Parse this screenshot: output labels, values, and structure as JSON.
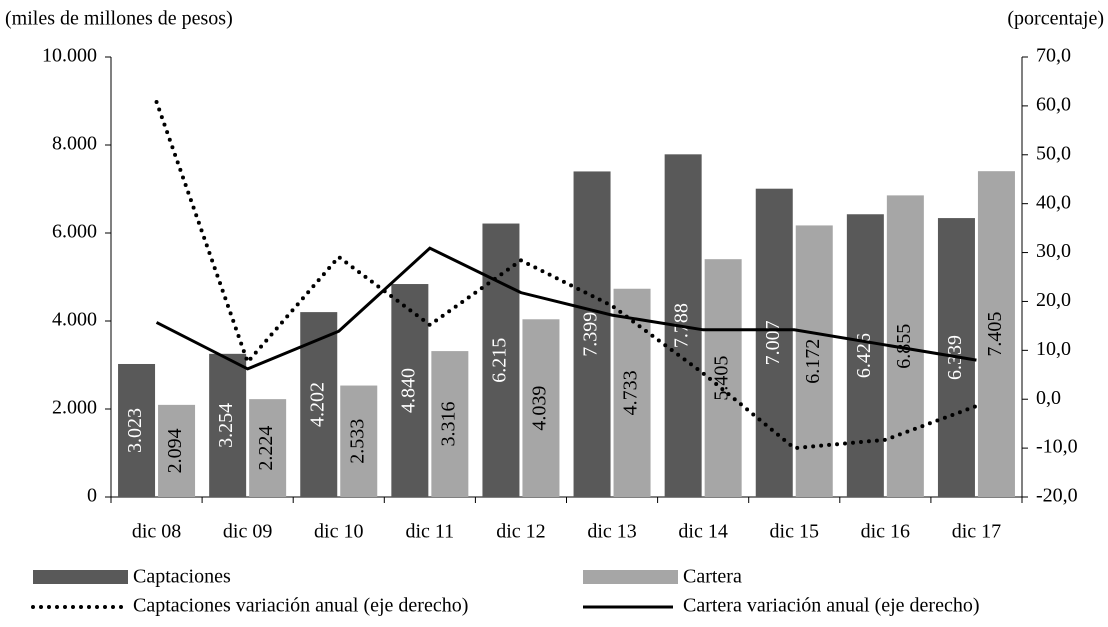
{
  "chart_data": {
    "type": "bar",
    "y_label": "(miles de millones de pesos)",
    "y2_label": "(porcentaje)",
    "categories": [
      "dic 08",
      "dic 09",
      "dic 10",
      "dic 11",
      "dic 12",
      "dic 13",
      "dic 14",
      "dic 15",
      "dic 16",
      "dic 17"
    ],
    "ylim": [
      0,
      10000
    ],
    "yticks": [
      0,
      {
        "value": 2000,
        "label": "2.000"
      },
      {
        "value": 4000,
        "label": "4.000"
      },
      {
        "value": 6000,
        "label": "6.000"
      },
      {
        "value": 8000,
        "label": "8.000"
      },
      {
        "value": 10000,
        "label": "10.000"
      }
    ],
    "y2lim": [
      -20,
      70
    ],
    "y2ticks": [
      {
        "value": -20,
        "label": "-20,0"
      },
      {
        "value": -10,
        "label": "-10,0"
      },
      {
        "value": 0,
        "label": "0,0"
      },
      {
        "value": 10,
        "label": "10,0"
      },
      {
        "value": 20,
        "label": "20,0"
      },
      {
        "value": 30,
        "label": "30,0"
      },
      {
        "value": 40,
        "label": "40,0"
      },
      {
        "value": 50,
        "label": "50,0"
      },
      {
        "value": 60,
        "label": "60,0"
      },
      {
        "value": 70,
        "label": "70,0"
      }
    ],
    "series": [
      {
        "name": "Captaciones",
        "type": "bar",
        "color": "#595959",
        "label_color": "#ffffff",
        "values": [
          3023,
          3254,
          4202,
          4840,
          6215,
          7399,
          7788,
          7007,
          6426,
          6339
        ],
        "value_labels": [
          "3.023",
          "3.254",
          "4.202",
          "4.840",
          "6.215",
          "7.399",
          "7.788",
          "7.007",
          "6.426",
          "6.339"
        ]
      },
      {
        "name": "Cartera",
        "type": "bar",
        "color": "#a6a6a6",
        "label_color": "#000000",
        "values": [
          2094,
          2224,
          2533,
          3316,
          4039,
          4733,
          5405,
          6172,
          6855,
          7405
        ],
        "value_labels": [
          "2.094",
          "2.224",
          "2.533",
          "3.316",
          "4.039",
          "4.733",
          "5.405",
          "6.172",
          "6.855",
          "7.405"
        ]
      },
      {
        "name": "Captaciones variación anual (eje derecho)",
        "type": "line",
        "dash": "dotted",
        "axis": "y2",
        "color": "#000000",
        "values": [
          60.8,
          7.6,
          29.1,
          15.2,
          28.4,
          19.1,
          5.3,
          -10.0,
          -8.3,
          -1.4
        ]
      },
      {
        "name": "Cartera variación anual (eje derecho)",
        "type": "line",
        "dash": "solid",
        "axis": "y2",
        "color": "#000000",
        "values": [
          15.7,
          6.2,
          13.9,
          30.9,
          21.8,
          17.2,
          14.2,
          14.2,
          11.1,
          8.0
        ]
      }
    ]
  }
}
